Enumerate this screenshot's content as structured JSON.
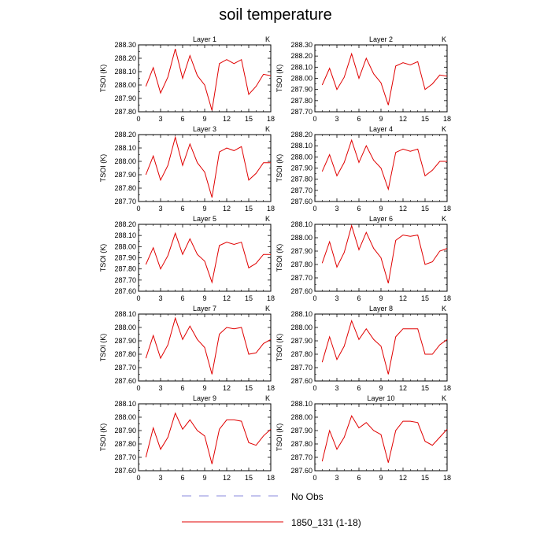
{
  "chart_data": {
    "type": "line",
    "title": "soil temperature",
    "xlim": [
      0,
      18
    ],
    "xticks": [
      0,
      3,
      6,
      9,
      12,
      15,
      18
    ],
    "x": [
      1,
      2,
      3,
      4,
      5,
      6,
      7,
      8,
      9,
      10,
      11,
      12,
      13,
      14,
      15,
      16,
      17,
      18
    ],
    "series_name": "1850_131 (1-18)",
    "series_color": "#e00000",
    "panels": [
      {
        "title": "Layer 1",
        "ylabel": "TSOI  (K)",
        "unit": "K",
        "ylim": [
          287.8,
          288.3
        ],
        "yticks": [
          "288.30",
          "288.20",
          "288.10",
          "288.00",
          "287.90",
          "287.80"
        ],
        "values": [
          287.99,
          288.13,
          287.94,
          288.06,
          288.27,
          288.05,
          288.22,
          288.07,
          288.0,
          287.81,
          288.16,
          288.19,
          288.16,
          288.19,
          287.93,
          287.99,
          288.08,
          288.07
        ]
      },
      {
        "title": "Layer 2",
        "ylabel": "TSOI  (K)",
        "unit": "K",
        "ylim": [
          287.7,
          288.3
        ],
        "yticks": [
          "288.30",
          "288.20",
          "288.10",
          "288.00",
          "287.90",
          "287.80",
          "287.70"
        ],
        "values": [
          287.94,
          288.09,
          287.9,
          288.01,
          288.22,
          288.0,
          288.18,
          288.04,
          287.96,
          287.76,
          288.11,
          288.14,
          288.12,
          288.15,
          287.9,
          287.95,
          288.03,
          288.02
        ]
      },
      {
        "title": "Layer 3",
        "ylabel": "TSOI  (K)",
        "unit": "K",
        "ylim": [
          287.7,
          288.2
        ],
        "yticks": [
          "288.20",
          "288.10",
          "288.00",
          "287.90",
          "287.80",
          "287.70"
        ],
        "values": [
          287.9,
          288.04,
          287.86,
          287.97,
          288.18,
          287.97,
          288.13,
          287.99,
          287.92,
          287.73,
          288.07,
          288.1,
          288.08,
          288.11,
          287.86,
          287.91,
          287.99,
          287.99
        ]
      },
      {
        "title": "Layer 4",
        "ylabel": "TSOI  (K)",
        "unit": "K",
        "ylim": [
          287.6,
          288.2
        ],
        "yticks": [
          "288.20",
          "288.10",
          "288.00",
          "287.90",
          "287.80",
          "287.70",
          "287.60"
        ],
        "values": [
          287.87,
          288.02,
          287.83,
          287.95,
          288.15,
          287.95,
          288.1,
          287.97,
          287.9,
          287.71,
          288.04,
          288.07,
          288.05,
          288.07,
          287.83,
          287.88,
          287.96,
          287.96
        ]
      },
      {
        "title": "Layer 5",
        "ylabel": "TSOI  (K)",
        "unit": "K",
        "ylim": [
          287.6,
          288.2
        ],
        "yticks": [
          "288.20",
          "288.10",
          "288.00",
          "287.90",
          "287.80",
          "287.70",
          "287.60"
        ],
        "values": [
          287.84,
          287.99,
          287.8,
          287.92,
          288.12,
          287.93,
          288.07,
          287.93,
          287.87,
          287.68,
          288.01,
          288.04,
          288.02,
          288.04,
          287.81,
          287.85,
          287.93,
          287.93
        ]
      },
      {
        "title": "Layer 6",
        "ylabel": "TSOI  (K)",
        "unit": "K",
        "ylim": [
          287.6,
          288.1
        ],
        "yticks": [
          "288.10",
          "288.00",
          "287.90",
          "287.80",
          "287.70",
          "287.60"
        ],
        "values": [
          287.81,
          287.97,
          287.78,
          287.89,
          288.09,
          287.91,
          288.04,
          287.92,
          287.85,
          287.66,
          287.98,
          288.02,
          288.01,
          288.02,
          287.8,
          287.82,
          287.9,
          287.92
        ]
      },
      {
        "title": "Layer 7",
        "ylabel": "TSOI  (K)",
        "unit": "K",
        "ylim": [
          287.6,
          288.1
        ],
        "yticks": [
          "288.10",
          "288.00",
          "287.90",
          "287.80",
          "287.70",
          "287.60"
        ],
        "values": [
          287.77,
          287.94,
          287.77,
          287.87,
          288.07,
          287.91,
          288.01,
          287.91,
          287.85,
          287.65,
          287.95,
          288.0,
          287.99,
          288.0,
          287.8,
          287.81,
          287.88,
          287.91
        ]
      },
      {
        "title": "Layer 8",
        "ylabel": "TSOI  (K)",
        "unit": "K",
        "ylim": [
          287.6,
          288.1
        ],
        "yticks": [
          "288.10",
          "288.00",
          "287.90",
          "287.80",
          "287.70",
          "287.60"
        ],
        "values": [
          287.74,
          287.93,
          287.76,
          287.86,
          288.05,
          287.91,
          287.99,
          287.91,
          287.86,
          287.65,
          287.93,
          287.99,
          287.99,
          287.99,
          287.8,
          287.8,
          287.87,
          287.91
        ]
      },
      {
        "title": "Layer 9",
        "ylabel": "TSOI  (K)",
        "unit": "K",
        "ylim": [
          287.6,
          288.1
        ],
        "yticks": [
          "288.10",
          "288.00",
          "287.90",
          "287.80",
          "287.70",
          "287.60"
        ],
        "values": [
          287.7,
          287.92,
          287.76,
          287.85,
          288.03,
          287.91,
          287.98,
          287.9,
          287.86,
          287.65,
          287.91,
          287.98,
          287.98,
          287.97,
          287.81,
          287.79,
          287.86,
          287.91
        ]
      },
      {
        "title": "Layer 10",
        "ylabel": "TSOI  (K)",
        "unit": "K",
        "ylim": [
          287.6,
          288.1
        ],
        "yticks": [
          "288.10",
          "288.00",
          "287.90",
          "287.80",
          "287.70",
          "287.60"
        ],
        "values": [
          287.67,
          287.9,
          287.76,
          287.85,
          288.01,
          287.92,
          287.96,
          287.9,
          287.87,
          287.66,
          287.9,
          287.97,
          287.97,
          287.96,
          287.82,
          287.79,
          287.85,
          287.91
        ]
      }
    ],
    "legend": [
      {
        "label": "No Obs",
        "color": "#8888dd",
        "style": "dashed"
      },
      {
        "label": "1850_131 (1-18)",
        "color": "#e00000",
        "style": "solid"
      }
    ]
  }
}
